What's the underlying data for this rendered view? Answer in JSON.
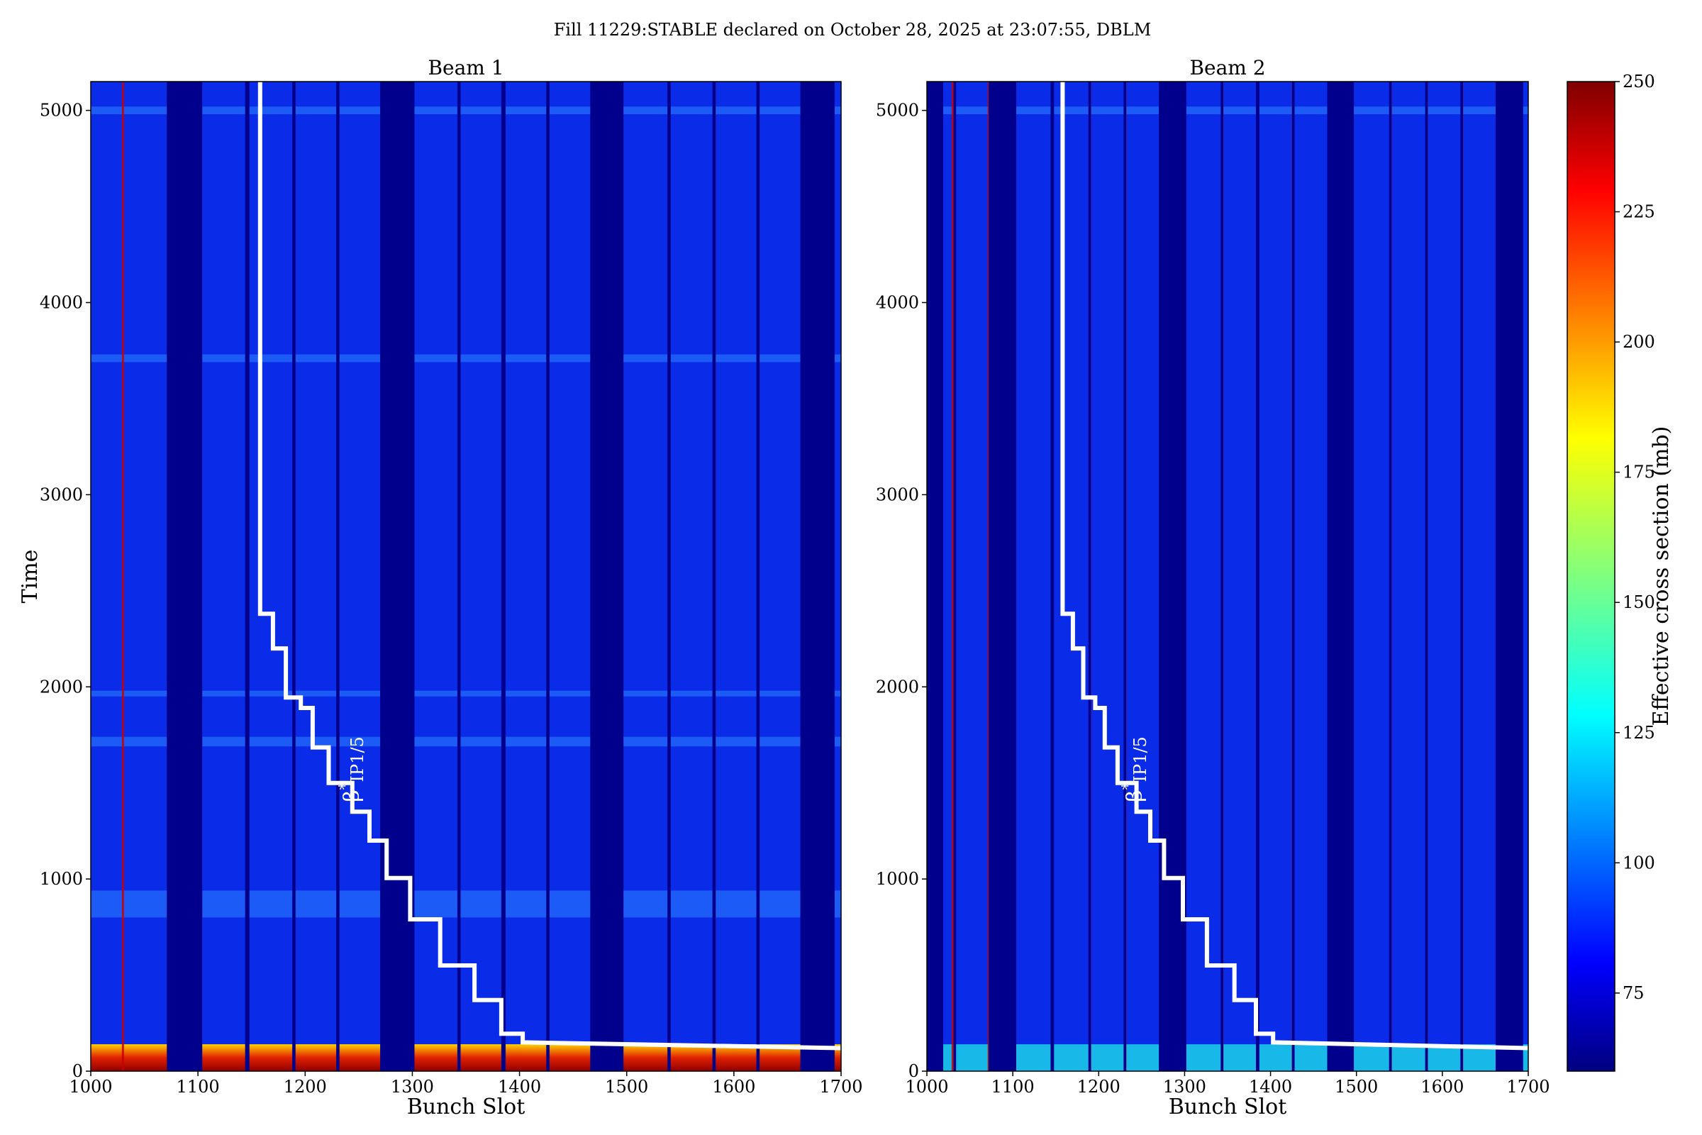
{
  "figure": {
    "title": "Fill 11229:STABLE declared on October 28, 2025 at 23:07:55, DBLM"
  },
  "colorbar": {
    "label": "Effective cross section (mb)",
    "range": [
      60,
      250
    ],
    "ticks": [
      75,
      100,
      125,
      150,
      175,
      200,
      225,
      250
    ],
    "colormap": "jet"
  },
  "colors": {
    "background_level": "#0a2ce8",
    "gap": "#00008c",
    "hot": "#c80000",
    "overlay_line": "#ffffff"
  },
  "chart_data": [
    {
      "type": "heatmap",
      "title": "Beam 1",
      "xlabel": "Bunch Slot",
      "ylabel": "Time",
      "xlim": [
        1000,
        1700
      ],
      "ylim": [
        0,
        5150
      ],
      "xticks": [
        1000,
        1100,
        1200,
        1300,
        1400,
        1500,
        1600,
        1700
      ],
      "yticks": [
        0,
        1000,
        2000,
        3000,
        4000,
        5000
      ],
      "empty_gaps": [
        [
          1071,
          1104
        ],
        [
          1144,
          1148
        ],
        [
          1188,
          1191
        ],
        [
          1229,
          1232
        ],
        [
          1270,
          1302
        ],
        [
          1342,
          1345
        ],
        [
          1383,
          1387
        ],
        [
          1425,
          1428
        ],
        [
          1466,
          1497
        ],
        [
          1538,
          1541
        ],
        [
          1580,
          1583
        ],
        [
          1621,
          1624
        ],
        [
          1662,
          1694
        ]
      ],
      "hot_stripes": [
        1030,
        1072,
        1146,
        1190,
        1231,
        1272,
        1344,
        1385,
        1426,
        1468,
        1540,
        1582,
        1623,
        1664
      ],
      "bright_bands": [
        [
          800,
          940
        ],
        [
          1690,
          1740
        ],
        [
          1950,
          1980
        ],
        [
          3690,
          3730
        ],
        [
          4980,
          5020
        ]
      ],
      "initial_hot_band": [
        0,
        140
      ],
      "annotation": {
        "text_main": "β",
        "superscript": "*",
        "subscript": "IP1/5",
        "x": 1250,
        "y": 1400
      },
      "overlay": {
        "name": "β*IP1/5",
        "points": [
          [
            1158,
            5150
          ],
          [
            1158,
            2380
          ],
          [
            1170,
            2380
          ],
          [
            1170,
            2200
          ],
          [
            1182,
            2200
          ],
          [
            1182,
            1945
          ],
          [
            1196,
            1945
          ],
          [
            1196,
            1890
          ],
          [
            1207,
            1890
          ],
          [
            1207,
            1685
          ],
          [
            1222,
            1685
          ],
          [
            1222,
            1500
          ],
          [
            1244,
            1500
          ],
          [
            1244,
            1350
          ],
          [
            1260,
            1350
          ],
          [
            1260,
            1200
          ],
          [
            1276,
            1200
          ],
          [
            1276,
            1005
          ],
          [
            1298,
            1005
          ],
          [
            1298,
            790
          ],
          [
            1326,
            790
          ],
          [
            1326,
            550
          ],
          [
            1358,
            550
          ],
          [
            1358,
            370
          ],
          [
            1383,
            370
          ],
          [
            1383,
            195
          ],
          [
            1403,
            195
          ],
          [
            1403,
            150
          ],
          [
            1700,
            120
          ]
        ]
      }
    },
    {
      "type": "heatmap",
      "title": "Beam 2",
      "xlabel": "Bunch Slot",
      "ylabel": "",
      "xlim": [
        1000,
        1700
      ],
      "ylim": [
        0,
        5150
      ],
      "xticks": [
        1000,
        1100,
        1200,
        1300,
        1400,
        1500,
        1600,
        1700
      ],
      "yticks": [
        0,
        1000,
        2000,
        3000,
        4000,
        5000
      ],
      "empty_gaps": [
        [
          1000,
          1019
        ],
        [
          1031,
          1034
        ],
        [
          1072,
          1104
        ],
        [
          1144,
          1148
        ],
        [
          1188,
          1191
        ],
        [
          1229,
          1232
        ],
        [
          1270,
          1302
        ],
        [
          1342,
          1345
        ],
        [
          1383,
          1387
        ],
        [
          1425,
          1428
        ],
        [
          1466,
          1497
        ],
        [
          1538,
          1541
        ],
        [
          1580,
          1583
        ],
        [
          1621,
          1624
        ],
        [
          1662,
          1694
        ]
      ],
      "hot_stripes": [
        1030,
        1072,
        1146,
        1190,
        1231,
        1272,
        1344,
        1385,
        1426,
        1468,
        1540,
        1582,
        1623,
        1664
      ],
      "bright_bands": [
        [
          4980,
          5020
        ]
      ],
      "initial_hot_band": [
        0,
        140
      ],
      "annotation": {
        "text_main": "β",
        "superscript": "*",
        "subscript": "IP1/5",
        "x": 1250,
        "y": 1400
      },
      "overlay": {
        "name": "β*IP1/5",
        "points": [
          [
            1158,
            5150
          ],
          [
            1158,
            2380
          ],
          [
            1170,
            2380
          ],
          [
            1170,
            2200
          ],
          [
            1182,
            2200
          ],
          [
            1182,
            1945
          ],
          [
            1196,
            1945
          ],
          [
            1196,
            1890
          ],
          [
            1207,
            1890
          ],
          [
            1207,
            1685
          ],
          [
            1222,
            1685
          ],
          [
            1222,
            1500
          ],
          [
            1244,
            1500
          ],
          [
            1244,
            1350
          ],
          [
            1260,
            1350
          ],
          [
            1260,
            1200
          ],
          [
            1276,
            1200
          ],
          [
            1276,
            1005
          ],
          [
            1298,
            1005
          ],
          [
            1298,
            790
          ],
          [
            1326,
            790
          ],
          [
            1326,
            550
          ],
          [
            1358,
            550
          ],
          [
            1358,
            370
          ],
          [
            1383,
            370
          ],
          [
            1383,
            195
          ],
          [
            1403,
            195
          ],
          [
            1403,
            150
          ],
          [
            1700,
            120
          ]
        ]
      }
    }
  ]
}
